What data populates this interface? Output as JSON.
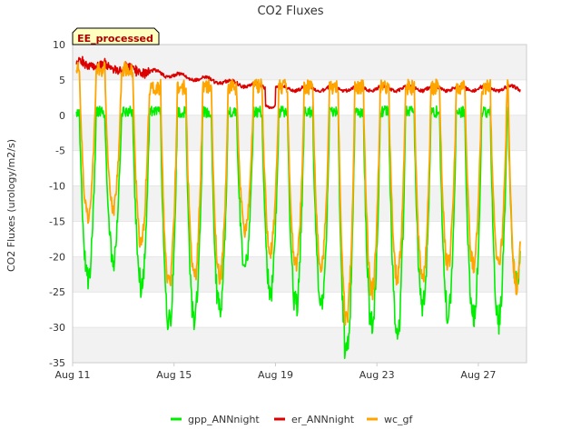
{
  "chart_data": {
    "type": "line",
    "title": "CO2 Fluxes",
    "ylabel": "CO2 Fluxes (urology/m2/s)",
    "xlabel": "",
    "badge": "EE_processed",
    "x_start": "Aug 11",
    "x_range_days": [
      0,
      17.9
    ],
    "xticks": [
      {
        "day": 0,
        "label": "Aug 11"
      },
      {
        "day": 4,
        "label": "Aug 15"
      },
      {
        "day": 8,
        "label": "Aug 19"
      },
      {
        "day": 12,
        "label": "Aug 23"
      },
      {
        "day": 16,
        "label": "Aug 27"
      }
    ],
    "ylim": [
      -35,
      10
    ],
    "yticks": [
      -35,
      -30,
      -25,
      -20,
      -15,
      -10,
      -5,
      0,
      5,
      10
    ],
    "shaded_bands": [
      [
        5,
        10
      ],
      [
        -5,
        0
      ],
      [
        -15,
        -10
      ],
      [
        -25,
        -20
      ],
      [
        -35,
        -30
      ]
    ],
    "grid": true,
    "legend_position": "bottom",
    "daily_minima": {
      "days": [
        0.6,
        1.6,
        2.7,
        3.8,
        4.8,
        5.8,
        6.8,
        7.8,
        8.8,
        9.8,
        10.8,
        11.8,
        12.8,
        13.8,
        14.8,
        15.8,
        16.8,
        17.5
      ],
      "gpp_ANNnight": [
        -24,
        -21,
        -25,
        -31,
        -30,
        -29,
        -22,
        -26,
        -28,
        -28,
        -35,
        -31,
        -32,
        -28,
        -29,
        -30,
        -30,
        -25
      ],
      "wc_gf": [
        -15,
        -14,
        -19,
        -25,
        -24,
        -24,
        -17,
        -20,
        -22,
        -22,
        -30,
        -26,
        -24,
        -24,
        -22,
        -22,
        -22,
        -25
      ]
    },
    "series": [
      {
        "name": "gpp_ANNnight",
        "color": "#00ee00",
        "baseline": 0.5
      },
      {
        "name": "er_ANNnight",
        "color": "#dd0000",
        "start": 7.5,
        "end": 3.8
      },
      {
        "name": "wc_gf",
        "color": "#ffa500",
        "baseline": 4.0
      }
    ]
  }
}
